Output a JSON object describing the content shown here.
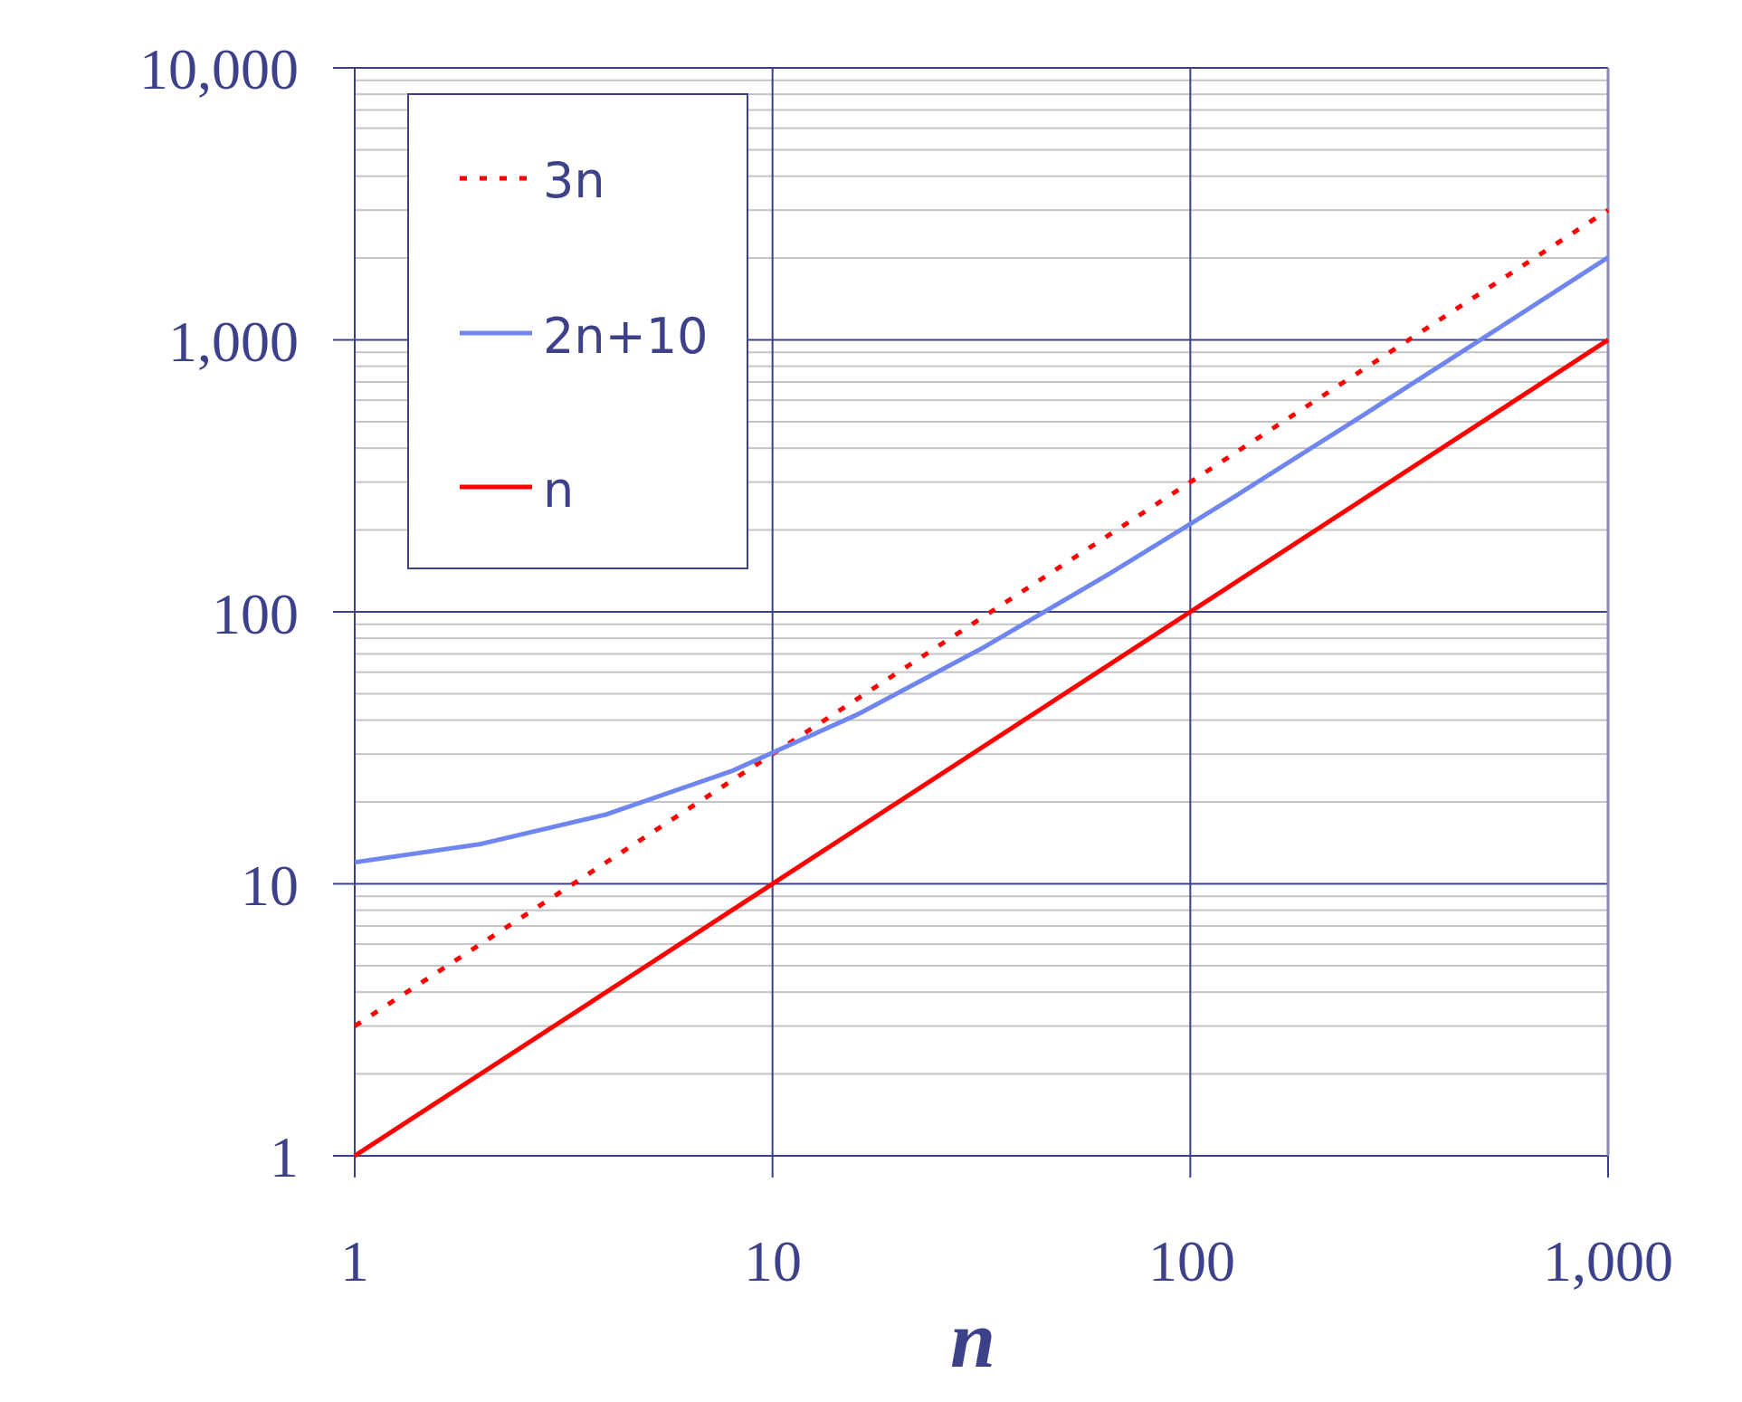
{
  "chart_data": {
    "type": "line",
    "xlabel": "n",
    "ylabel": "",
    "x_scale": "log",
    "y_scale": "log",
    "xlim": [
      1,
      1000
    ],
    "ylim": [
      1,
      10000
    ],
    "grid": true,
    "legend_position": "top-left",
    "x_ticks": [
      "1",
      "10",
      "100",
      "1,000"
    ],
    "y_ticks": [
      "1",
      "10",
      "100",
      "1,000",
      "10,000"
    ],
    "x": [
      1,
      2,
      4,
      8,
      16,
      32,
      64,
      128,
      256,
      512,
      1000
    ],
    "series": [
      {
        "name": "3n",
        "values": [
          3,
          6,
          12,
          24,
          48,
          96,
          192,
          384,
          768,
          1536,
          3000
        ],
        "color": "#ff0000",
        "style": "dotted"
      },
      {
        "name": "2n+10",
        "values": [
          12,
          14,
          18,
          26,
          42,
          74,
          138,
          266,
          522,
          1034,
          2010
        ],
        "color": "#6f86f0",
        "style": "solid"
      },
      {
        "name": "n",
        "values": [
          1,
          2,
          4,
          8,
          16,
          32,
          64,
          128,
          256,
          512,
          1000
        ],
        "color": "#ff0000",
        "style": "solid"
      }
    ]
  }
}
